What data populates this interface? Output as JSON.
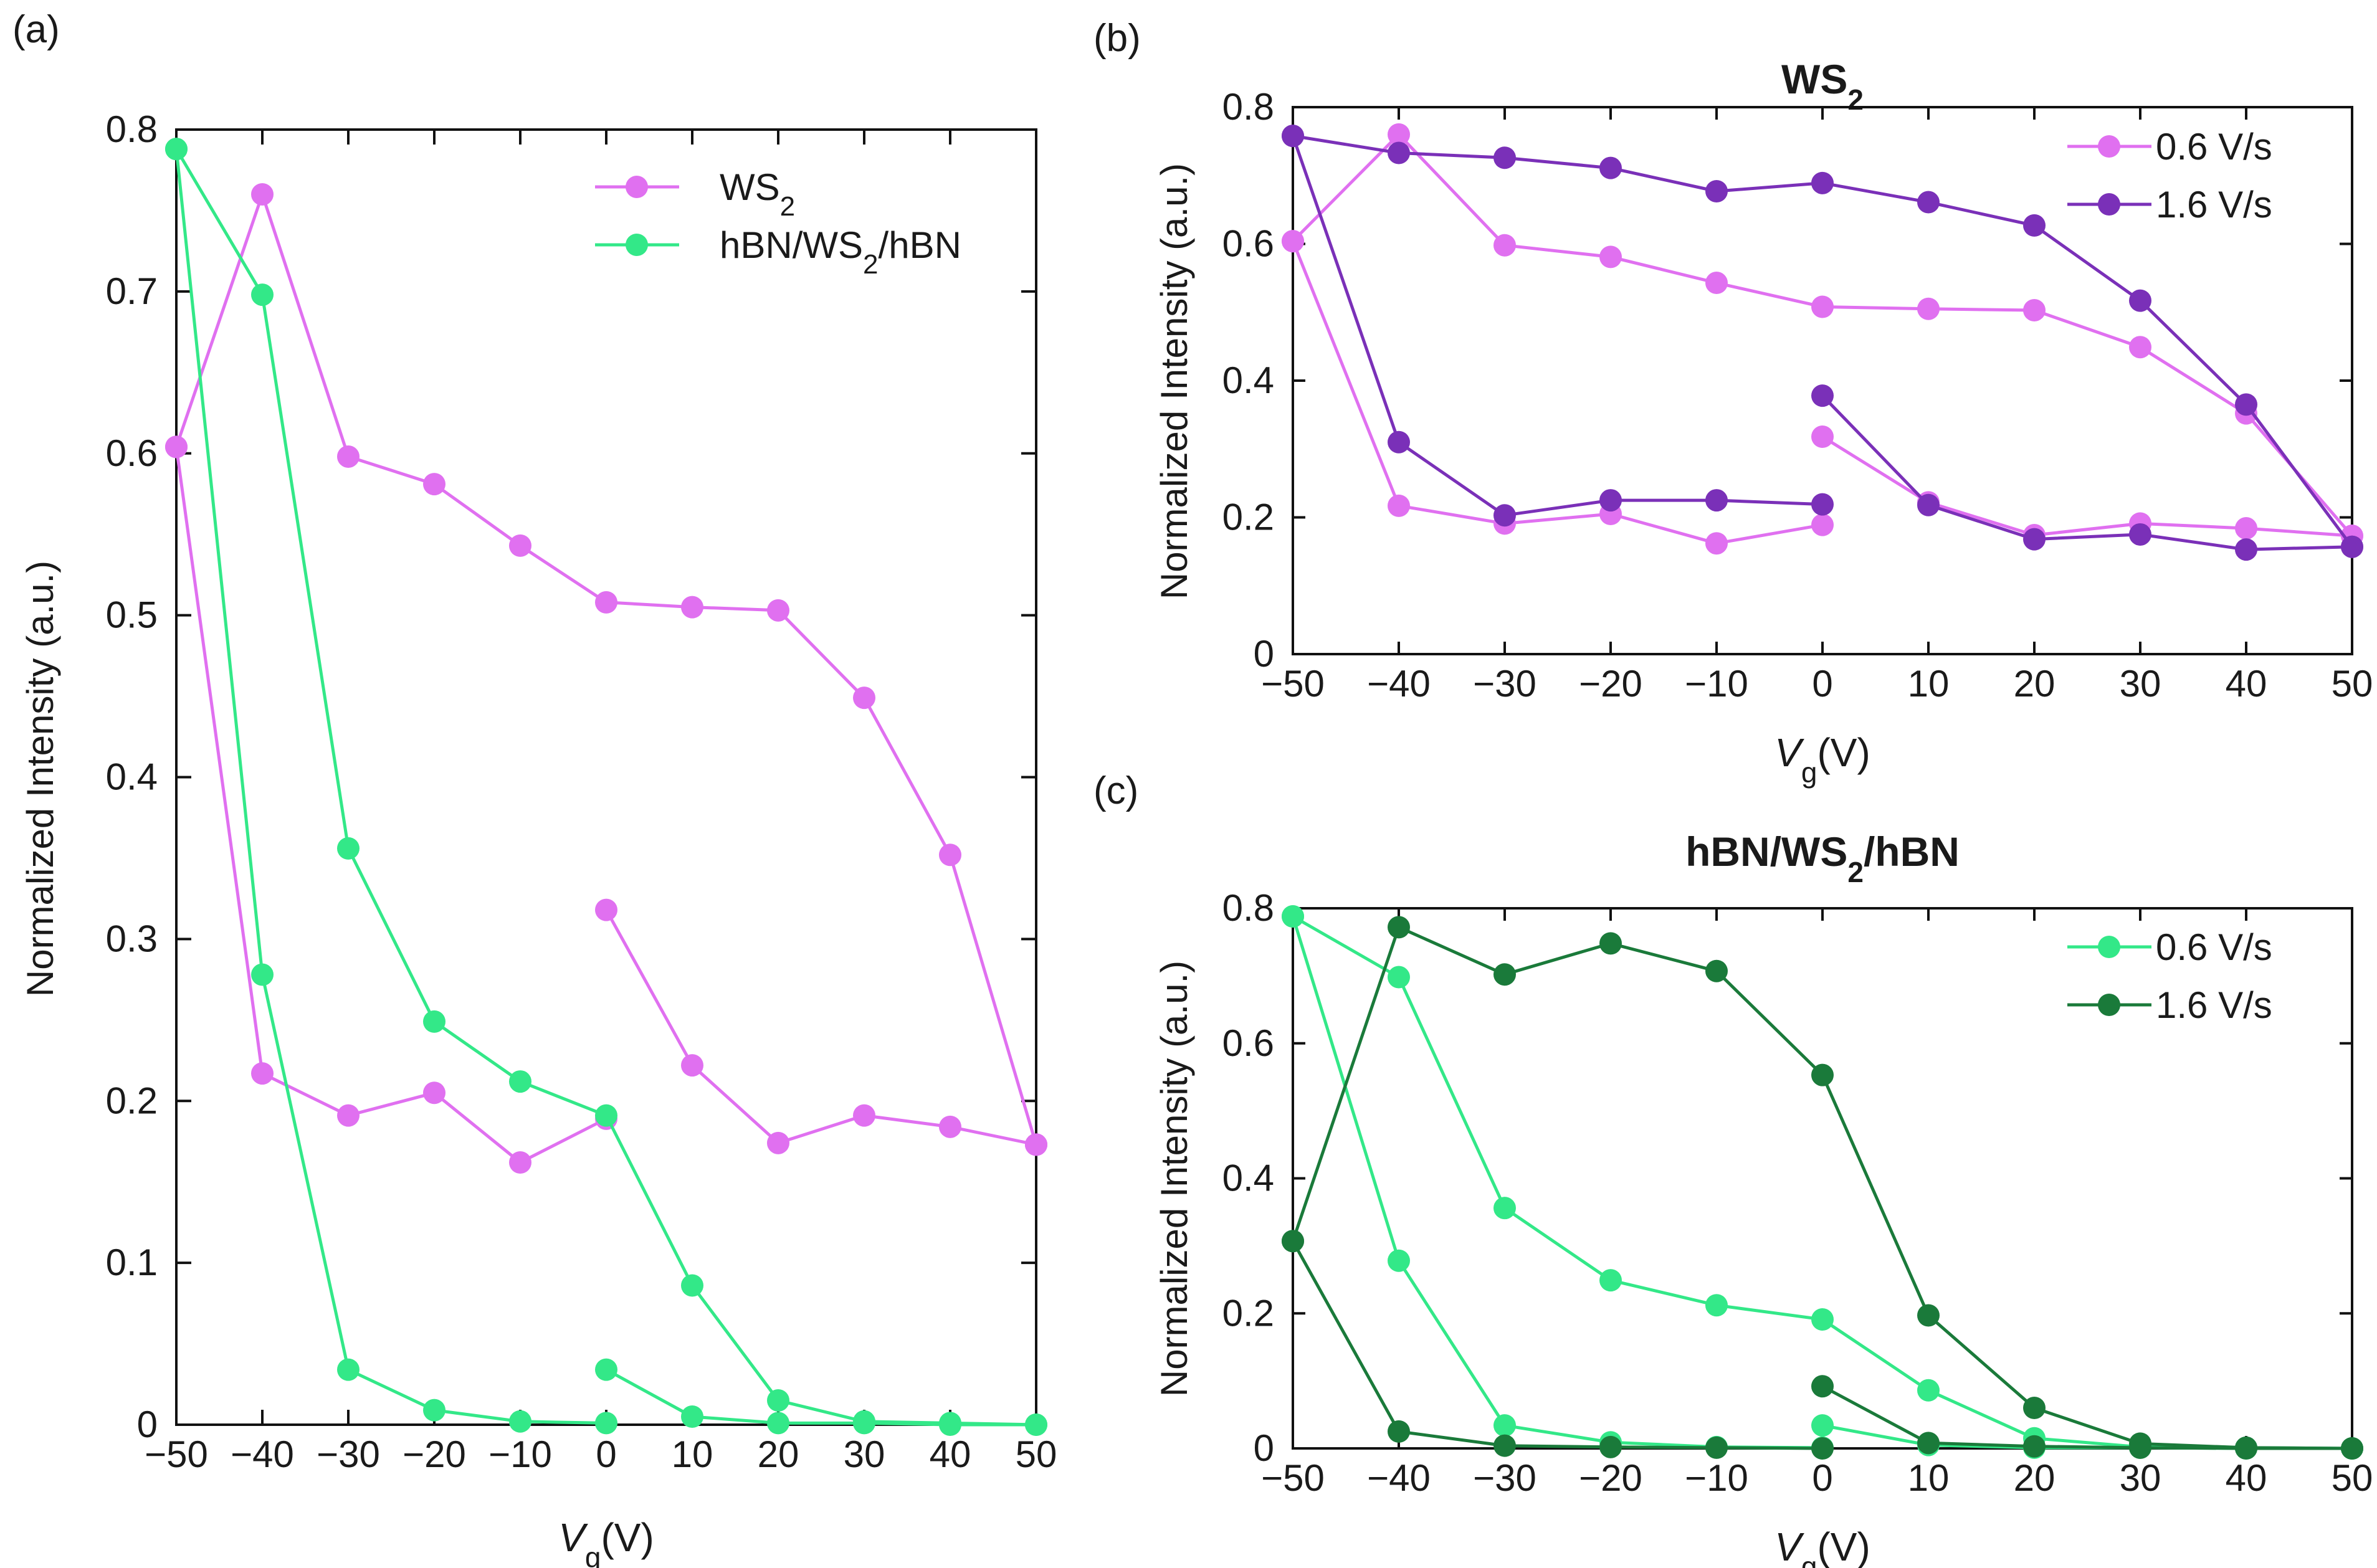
{
  "chart_data": [
    {
      "id": "a",
      "panel_label": "(a)",
      "type": "line",
      "title": "",
      "xlabel_main": "V",
      "xlabel_sub": "g",
      "xlabel_unit": "(V)",
      "ylabel": "Normalized Intensity (a.u.)",
      "xlim": [
        -50,
        50
      ],
      "ylim": [
        0,
        0.8
      ],
      "xticks": [
        -50,
        -40,
        -30,
        -20,
        -10,
        0,
        10,
        20,
        30,
        40,
        50
      ],
      "xtick_labels": [
        "−50",
        "−40",
        "−30",
        "−20",
        "−10",
        "0",
        "10",
        "20",
        "30",
        "40",
        "50"
      ],
      "yticks": [
        0,
        0.1,
        0.2,
        0.3,
        0.4,
        0.5,
        0.6,
        0.7,
        0.8
      ],
      "ytick_labels": [
        "0",
        "0.1",
        "0.2",
        "0.3",
        "0.4",
        "0.5",
        "0.6",
        "0.7",
        "0.8"
      ],
      "legend_position": "top-right",
      "legend": [
        {
          "name": "WS",
          "sub": "2",
          "rest": "",
          "color": "#e070f0"
        },
        {
          "name": "hBN/WS",
          "sub": "2",
          "rest": "/hBN",
          "color": "#33e888"
        }
      ],
      "series": [
        {
          "legend_index": 0,
          "color": "#e070f0",
          "segments": [
            {
              "x": [
                0,
                10,
                20,
                30,
                40,
                50,
                50
              ],
              "y": [
                0.318,
                0.222,
                0.174,
                0.191,
                0.184,
                0.173,
                0.173
              ]
            },
            {
              "x": [
                50,
                40,
                30,
                20,
                10,
                0,
                -10,
                -20,
                -30,
                -40,
                -50
              ],
              "y": [
                0.173,
                0.352,
                0.449,
                0.503,
                0.505,
                0.508,
                0.543,
                0.581,
                0.598,
                0.76,
                0.604
              ]
            },
            {
              "x": [
                -50,
                -40,
                -30,
                -20,
                -10,
                0
              ],
              "y": [
                0.604,
                0.217,
                0.191,
                0.205,
                0.162,
                0.189
              ]
            }
          ]
        },
        {
          "legend_index": 1,
          "color": "#33e888",
          "segments": [
            {
              "x": [
                0,
                10,
                20,
                30,
                40,
                50
              ],
              "y": [
                0.034,
                0.005,
                0.001,
                0.001,
                0.0,
                0.0
              ]
            },
            {
              "x": [
                50,
                40,
                30,
                20,
                10,
                0,
                -10,
                -20,
                -30,
                -40,
                -50
              ],
              "y": [
                0.0,
                0.001,
                0.002,
                0.015,
                0.086,
                0.191,
                0.212,
                0.249,
                0.356,
                0.698,
                0.788
              ]
            },
            {
              "x": [
                -50,
                -40,
                -30,
                -20,
                -10,
                0
              ],
              "y": [
                0.788,
                0.278,
                0.034,
                0.009,
                0.002,
                0.001
              ]
            }
          ]
        }
      ]
    },
    {
      "id": "b",
      "panel_label": "(b)",
      "type": "line",
      "title_main": "WS",
      "title_sub": "2",
      "title_rest": "",
      "xlabel_main": "V",
      "xlabel_sub": "g",
      "xlabel_unit": "(V)",
      "ylabel": "Normalized Intensity (a.u.)",
      "xlim": [
        -50,
        50
      ],
      "ylim": [
        0,
        0.8
      ],
      "xticks": [
        -50,
        -40,
        -30,
        -20,
        -10,
        0,
        10,
        20,
        30,
        40,
        50
      ],
      "xtick_labels": [
        "−50",
        "−40",
        "−30",
        "−20",
        "−10",
        "0",
        "10",
        "20",
        "30",
        "40",
        "50"
      ],
      "yticks": [
        0,
        0.2,
        0.4,
        0.6,
        0.8
      ],
      "ytick_labels": [
        "0",
        "0.2",
        "0.4",
        "0.6",
        "0.8"
      ],
      "legend_position": "top-right",
      "legend": [
        {
          "name": "0.6 V/s",
          "sub": "",
          "rest": "",
          "color": "#e070f0"
        },
        {
          "name": "1.6 V/s",
          "sub": "",
          "rest": "",
          "color": "#7a30b8"
        }
      ],
      "series": [
        {
          "legend_index": 0,
          "color": "#e070f0",
          "segments": [
            {
              "x": [
                0,
                10,
                20,
                30,
                40,
                50
              ],
              "y": [
                0.318,
                0.222,
                0.174,
                0.191,
                0.184,
                0.173
              ]
            },
            {
              "x": [
                50,
                40,
                30,
                20,
                10,
                0,
                -10,
                -20,
                -30,
                -40,
                -50
              ],
              "y": [
                0.173,
                0.352,
                0.449,
                0.503,
                0.505,
                0.508,
                0.543,
                0.581,
                0.598,
                0.76,
                0.604
              ]
            },
            {
              "x": [
                -50,
                -40,
                -30,
                -20,
                -10,
                0
              ],
              "y": [
                0.604,
                0.217,
                0.191,
                0.205,
                0.162,
                0.189
              ]
            }
          ]
        },
        {
          "legend_index": 1,
          "color": "#7a30b8",
          "segments": [
            {
              "x": [
                0,
                10,
                20,
                30,
                40,
                50
              ],
              "y": [
                0.378,
                0.218,
                0.168,
                0.175,
                0.153,
                0.157
              ]
            },
            {
              "x": [
                50,
                40,
                30,
                20,
                10,
                0,
                -10,
                -20,
                -30,
                -40,
                -50
              ],
              "y": [
                0.157,
                0.365,
                0.517,
                0.627,
                0.661,
                0.689,
                0.677,
                0.711,
                0.726,
                0.733,
                0.758
              ]
            },
            {
              "x": [
                -50,
                -40,
                -30,
                -20,
                -10,
                0
              ],
              "y": [
                0.758,
                0.31,
                0.203,
                0.225,
                0.225,
                0.219
              ]
            }
          ]
        }
      ]
    },
    {
      "id": "c",
      "panel_label": "(c)",
      "type": "line",
      "title_main": "hBN/WS",
      "title_sub": "2",
      "title_rest": "/hBN",
      "xlabel_main": "V",
      "xlabel_sub": "g",
      "xlabel_unit": "(V)",
      "ylabel": "Normalized Intensity (a.u.)",
      "xlim": [
        -50,
        50
      ],
      "ylim": [
        0,
        0.8
      ],
      "xticks": [
        -50,
        -40,
        -30,
        -20,
        -10,
        0,
        10,
        20,
        30,
        40,
        50
      ],
      "xtick_labels": [
        "−50",
        "−40",
        "−30",
        "−20",
        "−10",
        "0",
        "10",
        "20",
        "30",
        "40",
        "50"
      ],
      "yticks": [
        0,
        0.2,
        0.4,
        0.6,
        0.8
      ],
      "ytick_labels": [
        "0",
        "0.2",
        "0.4",
        "0.6",
        "0.8"
      ],
      "legend_position": "top-right",
      "legend": [
        {
          "name": "0.6 V/s",
          "sub": "",
          "rest": "",
          "color": "#33e888"
        },
        {
          "name": "1.6 V/s",
          "sub": "",
          "rest": "",
          "color": "#1a7a3a"
        }
      ],
      "series": [
        {
          "legend_index": 0,
          "color": "#33e888",
          "segments": [
            {
              "x": [
                0,
                10,
                20,
                30,
                40,
                50
              ],
              "y": [
                0.034,
                0.005,
                0.001,
                0.001,
                0.0,
                0.0
              ]
            },
            {
              "x": [
                50,
                40,
                30,
                20,
                10,
                0,
                -10,
                -20,
                -30,
                -40,
                -50
              ],
              "y": [
                0.0,
                0.001,
                0.002,
                0.015,
                0.086,
                0.191,
                0.212,
                0.249,
                0.356,
                0.698,
                0.788
              ]
            },
            {
              "x": [
                -50,
                -40,
                -30,
                -20,
                -10,
                0
              ],
              "y": [
                0.788,
                0.278,
                0.034,
                0.009,
                0.002,
                0.001
              ]
            }
          ]
        },
        {
          "legend_index": 1,
          "color": "#1a7a3a",
          "segments": [
            {
              "x": [
                0,
                10,
                20,
                30,
                40,
                50
              ],
              "y": [
                0.092,
                0.008,
                0.003,
                0.001,
                0.0,
                0.0
              ]
            },
            {
              "x": [
                50,
                40,
                30,
                20,
                10,
                0,
                -10,
                -20,
                -30,
                -40,
                -50
              ],
              "y": [
                0.0,
                0.001,
                0.007,
                0.06,
                0.197,
                0.553,
                0.707,
                0.748,
                0.702,
                0.772,
                0.307
              ]
            },
            {
              "x": [
                -50,
                -40,
                -30,
                -20,
                -10,
                0
              ],
              "y": [
                0.307,
                0.025,
                0.004,
                0.002,
                0.001,
                0.0
              ]
            }
          ]
        }
      ]
    }
  ]
}
